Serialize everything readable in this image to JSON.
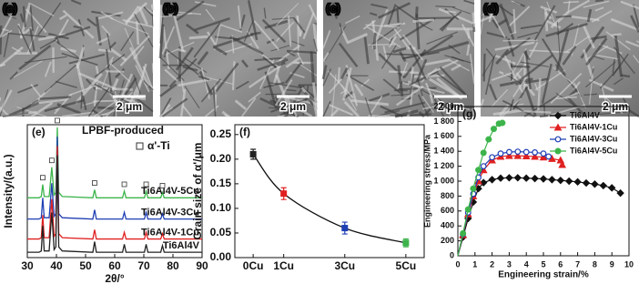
{
  "micrographs": [
    {
      "label": "(a)",
      "scale_bar": "2 μm"
    },
    {
      "label": "(b)",
      "scale_bar": "2 μm"
    },
    {
      "label": "(c)",
      "scale_bar": "2 μm"
    },
    {
      "label": "(d)",
      "scale_bar": "2 μm"
    }
  ],
  "chart_data": [
    {
      "type": "line",
      "panel": "(e)",
      "title": "LPBF-produced",
      "xlabel": "2θ/°",
      "ylabel": "Intensity/(a.u.)",
      "x": [
        30,
        34,
        34.8,
        35.3,
        35.8,
        37.5,
        38.4,
        39.2,
        39.8,
        40.3,
        40.8,
        42,
        52.5,
        53.1,
        53.7,
        62.7,
        63.3,
        63.9,
        70.2,
        70.8,
        71.4,
        75.8,
        76.4,
        77,
        90
      ],
      "xlim": [
        30,
        90
      ],
      "xticks": [
        30,
        40,
        50,
        60,
        70,
        80,
        90
      ],
      "ylim": [
        0,
        100
      ],
      "series": [
        {
          "name": "Ti6Al4V-5Cu",
          "color": "#3cb44b",
          "values": [
            45,
            45,
            46,
            55,
            46,
            46,
            68,
            47,
            49,
            98,
            49,
            46,
            45,
            51,
            45,
            45,
            50,
            45,
            45,
            50,
            45,
            45,
            49,
            45,
            45
          ]
        },
        {
          "name": "Ti6Al4V-3Cu",
          "color": "#1f3fb4",
          "values": [
            29,
            29,
            30,
            45,
            30,
            30,
            56,
            31,
            33,
            91,
            33,
            30,
            29,
            36,
            29,
            29,
            34,
            29,
            29,
            34,
            29,
            29,
            33,
            29,
            29
          ]
        },
        {
          "name": "Ti6Al4V-1Cu",
          "color": "#e02020",
          "values": [
            14,
            14,
            15,
            32,
            15,
            15,
            44,
            16,
            18,
            84,
            18,
            15,
            14,
            21,
            14,
            14,
            19,
            14,
            14,
            19,
            14,
            14,
            18,
            14,
            14
          ]
        },
        {
          "name": "Ti6Al4V",
          "color": "#222222",
          "values": [
            4,
            4,
            5,
            24,
            5,
            5,
            34,
            6,
            8,
            77,
            8,
            5,
            4,
            12,
            4,
            4,
            10,
            4,
            4,
            10,
            4,
            4,
            9,
            4,
            4
          ]
        }
      ],
      "phase_marker": {
        "label": "α'-Ti",
        "positions": [
          35.3,
          38.4,
          40.3,
          53.1,
          63.3,
          70.8,
          76.4
        ]
      }
    },
    {
      "type": "scatter",
      "panel": "(f)",
      "ylabel": "Grain size of α'/μm",
      "x": [
        0,
        1,
        3,
        5
      ],
      "xlim": [
        -0.6,
        5.6
      ],
      "xticks": [
        {
          "value": 0,
          "label": "0Cu"
        },
        {
          "value": 1,
          "label": "1Cu"
        },
        {
          "value": 3,
          "label": "3Cu"
        },
        {
          "value": 5,
          "label": "5Cu"
        }
      ],
      "ylim": [
        0,
        0.27
      ],
      "yticks": [
        {
          "value": 0,
          "label": "0.00"
        },
        {
          "value": 0.05,
          "label": "0.05"
        },
        {
          "value": 0.1,
          "label": "0.10"
        },
        {
          "value": 0.15,
          "label": "0.15"
        },
        {
          "value": 0.2,
          "label": "0.20"
        },
        {
          "value": 0.25,
          "label": "0.25"
        }
      ],
      "values": [
        0.21,
        0.13,
        0.06,
        0.03
      ],
      "errors": [
        0.01,
        0.012,
        0.012,
        0.008
      ],
      "colors": [
        "#222222",
        "#e02020",
        "#1f3fb4",
        "#3cb44b"
      ]
    },
    {
      "type": "line",
      "panel": "(g)",
      "xlabel": "Engineering strain/%",
      "ylabel": "Engineering stress/MPa",
      "xlim": [
        0,
        10
      ],
      "xticks": [
        0,
        1,
        2,
        3,
        4,
        5,
        6,
        7,
        8,
        9,
        10
      ],
      "ylim": [
        0,
        2000
      ],
      "yticks": [
        0,
        200,
        400,
        600,
        800,
        {
          "value": 1000,
          "label": "1 000"
        },
        {
          "value": 1200,
          "label": "1 200"
        },
        {
          "value": 1400,
          "label": "1 400"
        },
        {
          "value": 1600,
          "label": "1 600"
        },
        {
          "value": 1800,
          "label": "1 800"
        },
        {
          "value": 2000,
          "label": "2 000"
        }
      ],
      "legend": "upper right",
      "series": [
        {
          "name": "Ti6Al4V",
          "color": "#111111",
          "marker": "diamond",
          "x": [
            0,
            0.3,
            0.6,
            0.9,
            1.2,
            1.5,
            2,
            2.5,
            3,
            3.5,
            4,
            4.5,
            5,
            5.5,
            6,
            6.5,
            7,
            7.5,
            8,
            8.5,
            9,
            9.5
          ],
          "values": [
            0,
            250,
            500,
            720,
            900,
            980,
            1020,
            1040,
            1045,
            1045,
            1040,
            1035,
            1030,
            1020,
            1010,
            1000,
            990,
            975,
            960,
            940,
            910,
            840
          ]
        },
        {
          "name": "Ti6Al4V-1Cu",
          "color": "#e02020",
          "marker": "triangle",
          "x": [
            0,
            0.3,
            0.6,
            0.9,
            1.2,
            1.5,
            2,
            2.5,
            3,
            3.5,
            4,
            4.5,
            5,
            5.5,
            6,
            6.1
          ],
          "values": [
            0,
            280,
            560,
            800,
            1000,
            1150,
            1280,
            1330,
            1340,
            1340,
            1335,
            1330,
            1320,
            1300,
            1280,
            1220
          ]
        },
        {
          "name": "Ti6Al4V-3Cu",
          "color": "#1f3fb4",
          "marker": "circle-open",
          "x": [
            0,
            0.3,
            0.6,
            0.9,
            1.2,
            1.5,
            2,
            2.5,
            3,
            3.5,
            4,
            4.5,
            5,
            5.3
          ],
          "values": [
            0,
            290,
            580,
            830,
            1050,
            1200,
            1320,
            1370,
            1390,
            1395,
            1390,
            1385,
            1370,
            1330
          ]
        },
        {
          "name": "Ti6Al4V-5Cu",
          "color": "#3cb44b",
          "marker": "circle",
          "x": [
            0,
            0.3,
            0.6,
            0.9,
            1.2,
            1.5,
            1.8,
            2.1,
            2.4,
            2.6
          ],
          "values": [
            0,
            300,
            620,
            900,
            1150,
            1380,
            1560,
            1700,
            1770,
            1780
          ]
        }
      ]
    }
  ]
}
